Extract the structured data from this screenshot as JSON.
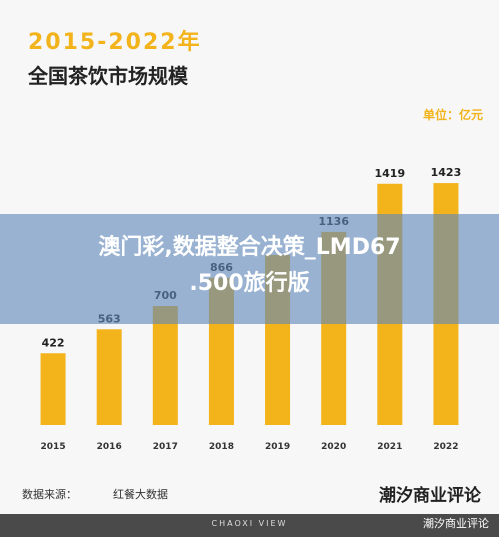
{
  "header": {
    "title_year": "2015-2022年",
    "title_main": "全国茶饮市场规模",
    "unit": "单位：亿元"
  },
  "chart_data": {
    "type": "bar",
    "categories": [
      "2015",
      "2016",
      "2017",
      "2018",
      "2019",
      "2020",
      "2021",
      "2022"
    ],
    "values": [
      422,
      563,
      700,
      866,
      1000,
      1136,
      1419,
      1423
    ],
    "data_labels": [
      "422",
      "563",
      "700",
      "866",
      "",
      "1136",
      "1419",
      "1423"
    ],
    "title": "全国茶饮市场规模",
    "ylabel": "单位：亿元",
    "ylim": [
      0,
      1500
    ],
    "grid": false,
    "bar_color": "#f2b31b"
  },
  "footer": {
    "source_label": "数据来源：",
    "source_name": "红餐大数据",
    "brand_text": "潮汐商业评论",
    "band_text": "CHAOXI VIEW",
    "corner_text": "潮汐商业评论"
  },
  "overlay": {
    "line1": "澳门彩,数据整合决策_LMD67",
    "line2": ".500旅行版"
  }
}
